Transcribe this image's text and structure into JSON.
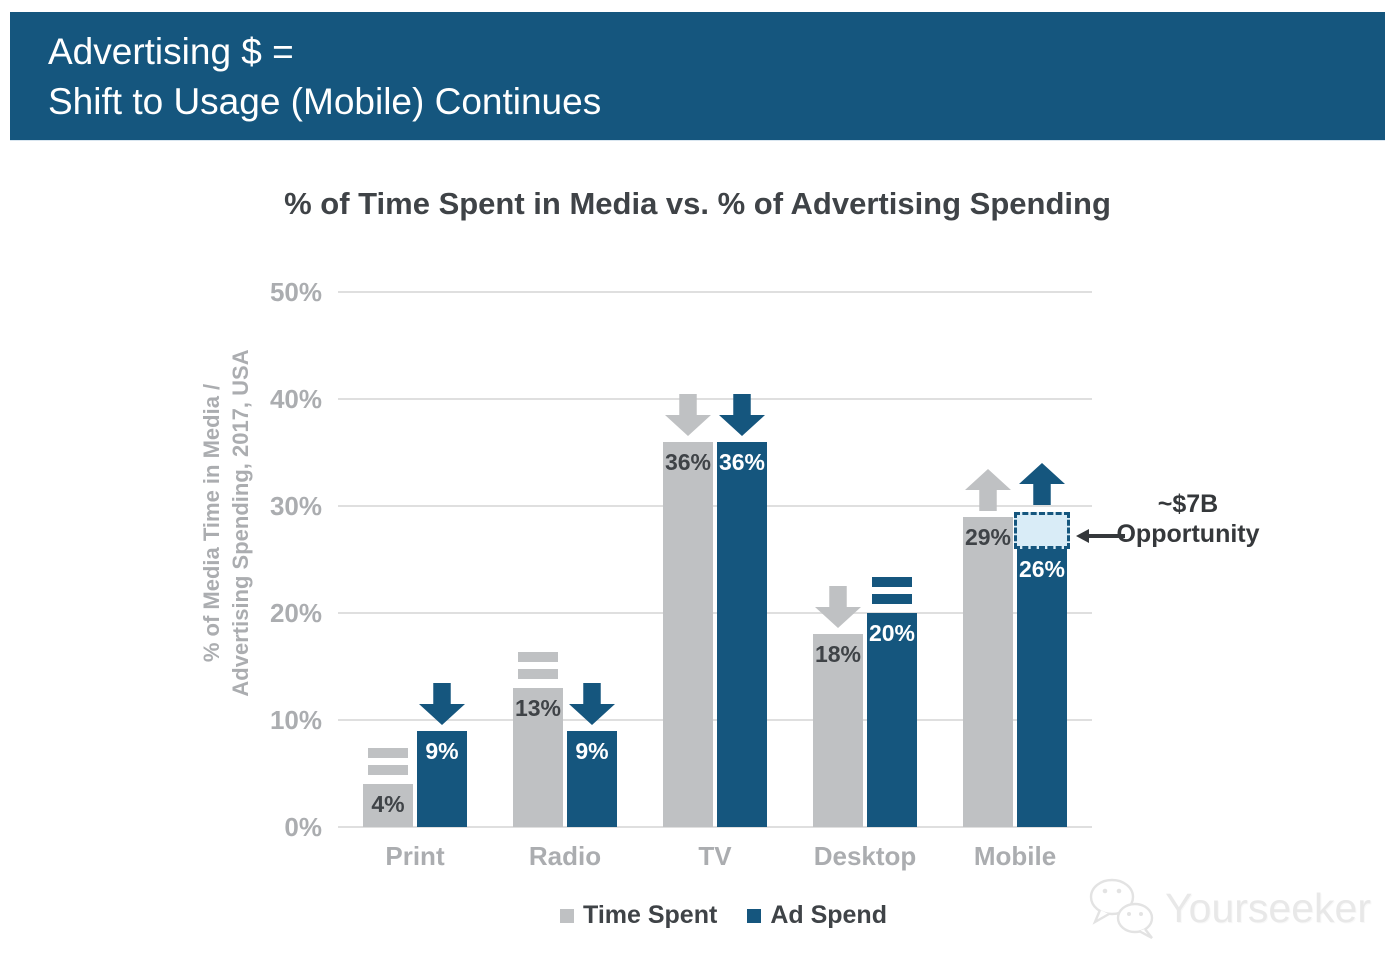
{
  "colors": {
    "accent_blue": "#15567E",
    "bar_gray": "#BFC1C3",
    "opportunity_fill": "#D9ECF7",
    "gridline": "#DFDFDF",
    "axis_text": "#ABADB0",
    "dark_text": "#3F4347",
    "banner_text": "#FFFFFF",
    "watermark_gray": "#E8E8E8"
  },
  "banner": {
    "line1": "Advertising $ =",
    "line2": "Shift to Usage (Mobile) Continues"
  },
  "chart_data": {
    "type": "bar",
    "title": "% of Time Spent in Media vs. % of Advertising Spending",
    "ylabel": [
      "% of Media Time in Media /",
      "Advertising Spending, 2017, USA"
    ],
    "categories": [
      "Print",
      "Radio",
      "TV",
      "Desktop",
      "Mobile"
    ],
    "series": [
      {
        "name": "Time Spent",
        "color_key": "bar_gray",
        "values": [
          4,
          13,
          36,
          18,
          29
        ],
        "labels": [
          "4%",
          "13%",
          "36%",
          "18%",
          "29%"
        ],
        "trends": [
          "equal",
          "equal",
          "down",
          "down",
          "up"
        ]
      },
      {
        "name": "Ad Spend",
        "color_key": "accent_blue",
        "values": [
          9,
          9,
          36,
          20,
          26
        ],
        "labels": [
          "9%",
          "9%",
          "36%",
          "20%",
          "26%"
        ],
        "trends": [
          "down",
          "down",
          "down",
          "equal",
          "up"
        ]
      }
    ],
    "y_ticks": [
      "0%",
      "10%",
      "20%",
      "30%",
      "40%",
      "50%"
    ],
    "ylim": [
      0,
      50
    ],
    "grid": true,
    "legend_position": "bottom",
    "annotation": {
      "text_line1": "~$7B",
      "text_line2": "Opportunity",
      "target_category": "Mobile",
      "target_series": "Ad Spend",
      "box_from_pct": 26,
      "box_to_pct": 29.5
    }
  },
  "legend": [
    {
      "label": "Time Spent",
      "color_key": "bar_gray"
    },
    {
      "label": "Ad Spend",
      "color_key": "accent_blue"
    }
  ],
  "watermark": {
    "text": "Yourseeker"
  }
}
